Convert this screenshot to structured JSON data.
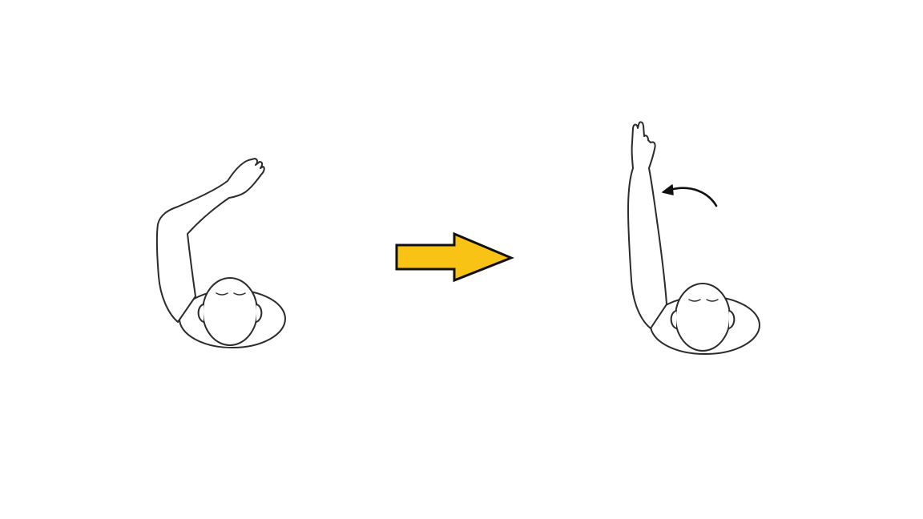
{
  "diagram": {
    "type": "exercise-illustration",
    "panels": [
      {
        "id": "start",
        "pose": "arm-bent-over-head-top-view"
      },
      {
        "id": "end",
        "pose": "arm-raised-straight-top-view"
      }
    ],
    "transition_arrow": {
      "color": "#F9C316",
      "outline": "#111111",
      "direction": "right"
    },
    "motion_arrow": {
      "color": "#111111",
      "direction": "counter-clockwise"
    },
    "colors": {
      "background": "#FFFFFF",
      "line": "#2B2B2B"
    }
  }
}
